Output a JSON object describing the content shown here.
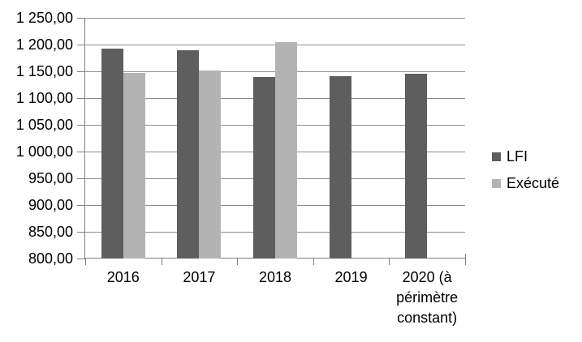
{
  "chart_data": {
    "type": "bar",
    "title": "",
    "categories": [
      "2016",
      "2017",
      "2018",
      "2019",
      "2020 (à périmètre constant)"
    ],
    "series": [
      {
        "name": "LFI",
        "color": "#5e5e5e",
        "values": [
          1192,
          1190,
          1139,
          1141,
          1146
        ]
      },
      {
        "name": "Exécuté",
        "color": "#b3b3b3",
        "values": [
          1147,
          1151,
          1205,
          null,
          null
        ]
      }
    ],
    "ylim": [
      800,
      1250
    ],
    "y_tick_step": 50,
    "y_tick_labels": [
      "1 250,00",
      "1 200,00",
      "1 150,00",
      "1 100,00",
      "1 050,00",
      "1 000,00",
      "950,00",
      "900,00",
      "850,00",
      "800,00"
    ],
    "grid": true,
    "legend_position": "right"
  },
  "colors": {
    "gridline": "#8e8e8e",
    "axis": "#7f7f7f",
    "text": "#000000",
    "background": "#ffffff"
  }
}
